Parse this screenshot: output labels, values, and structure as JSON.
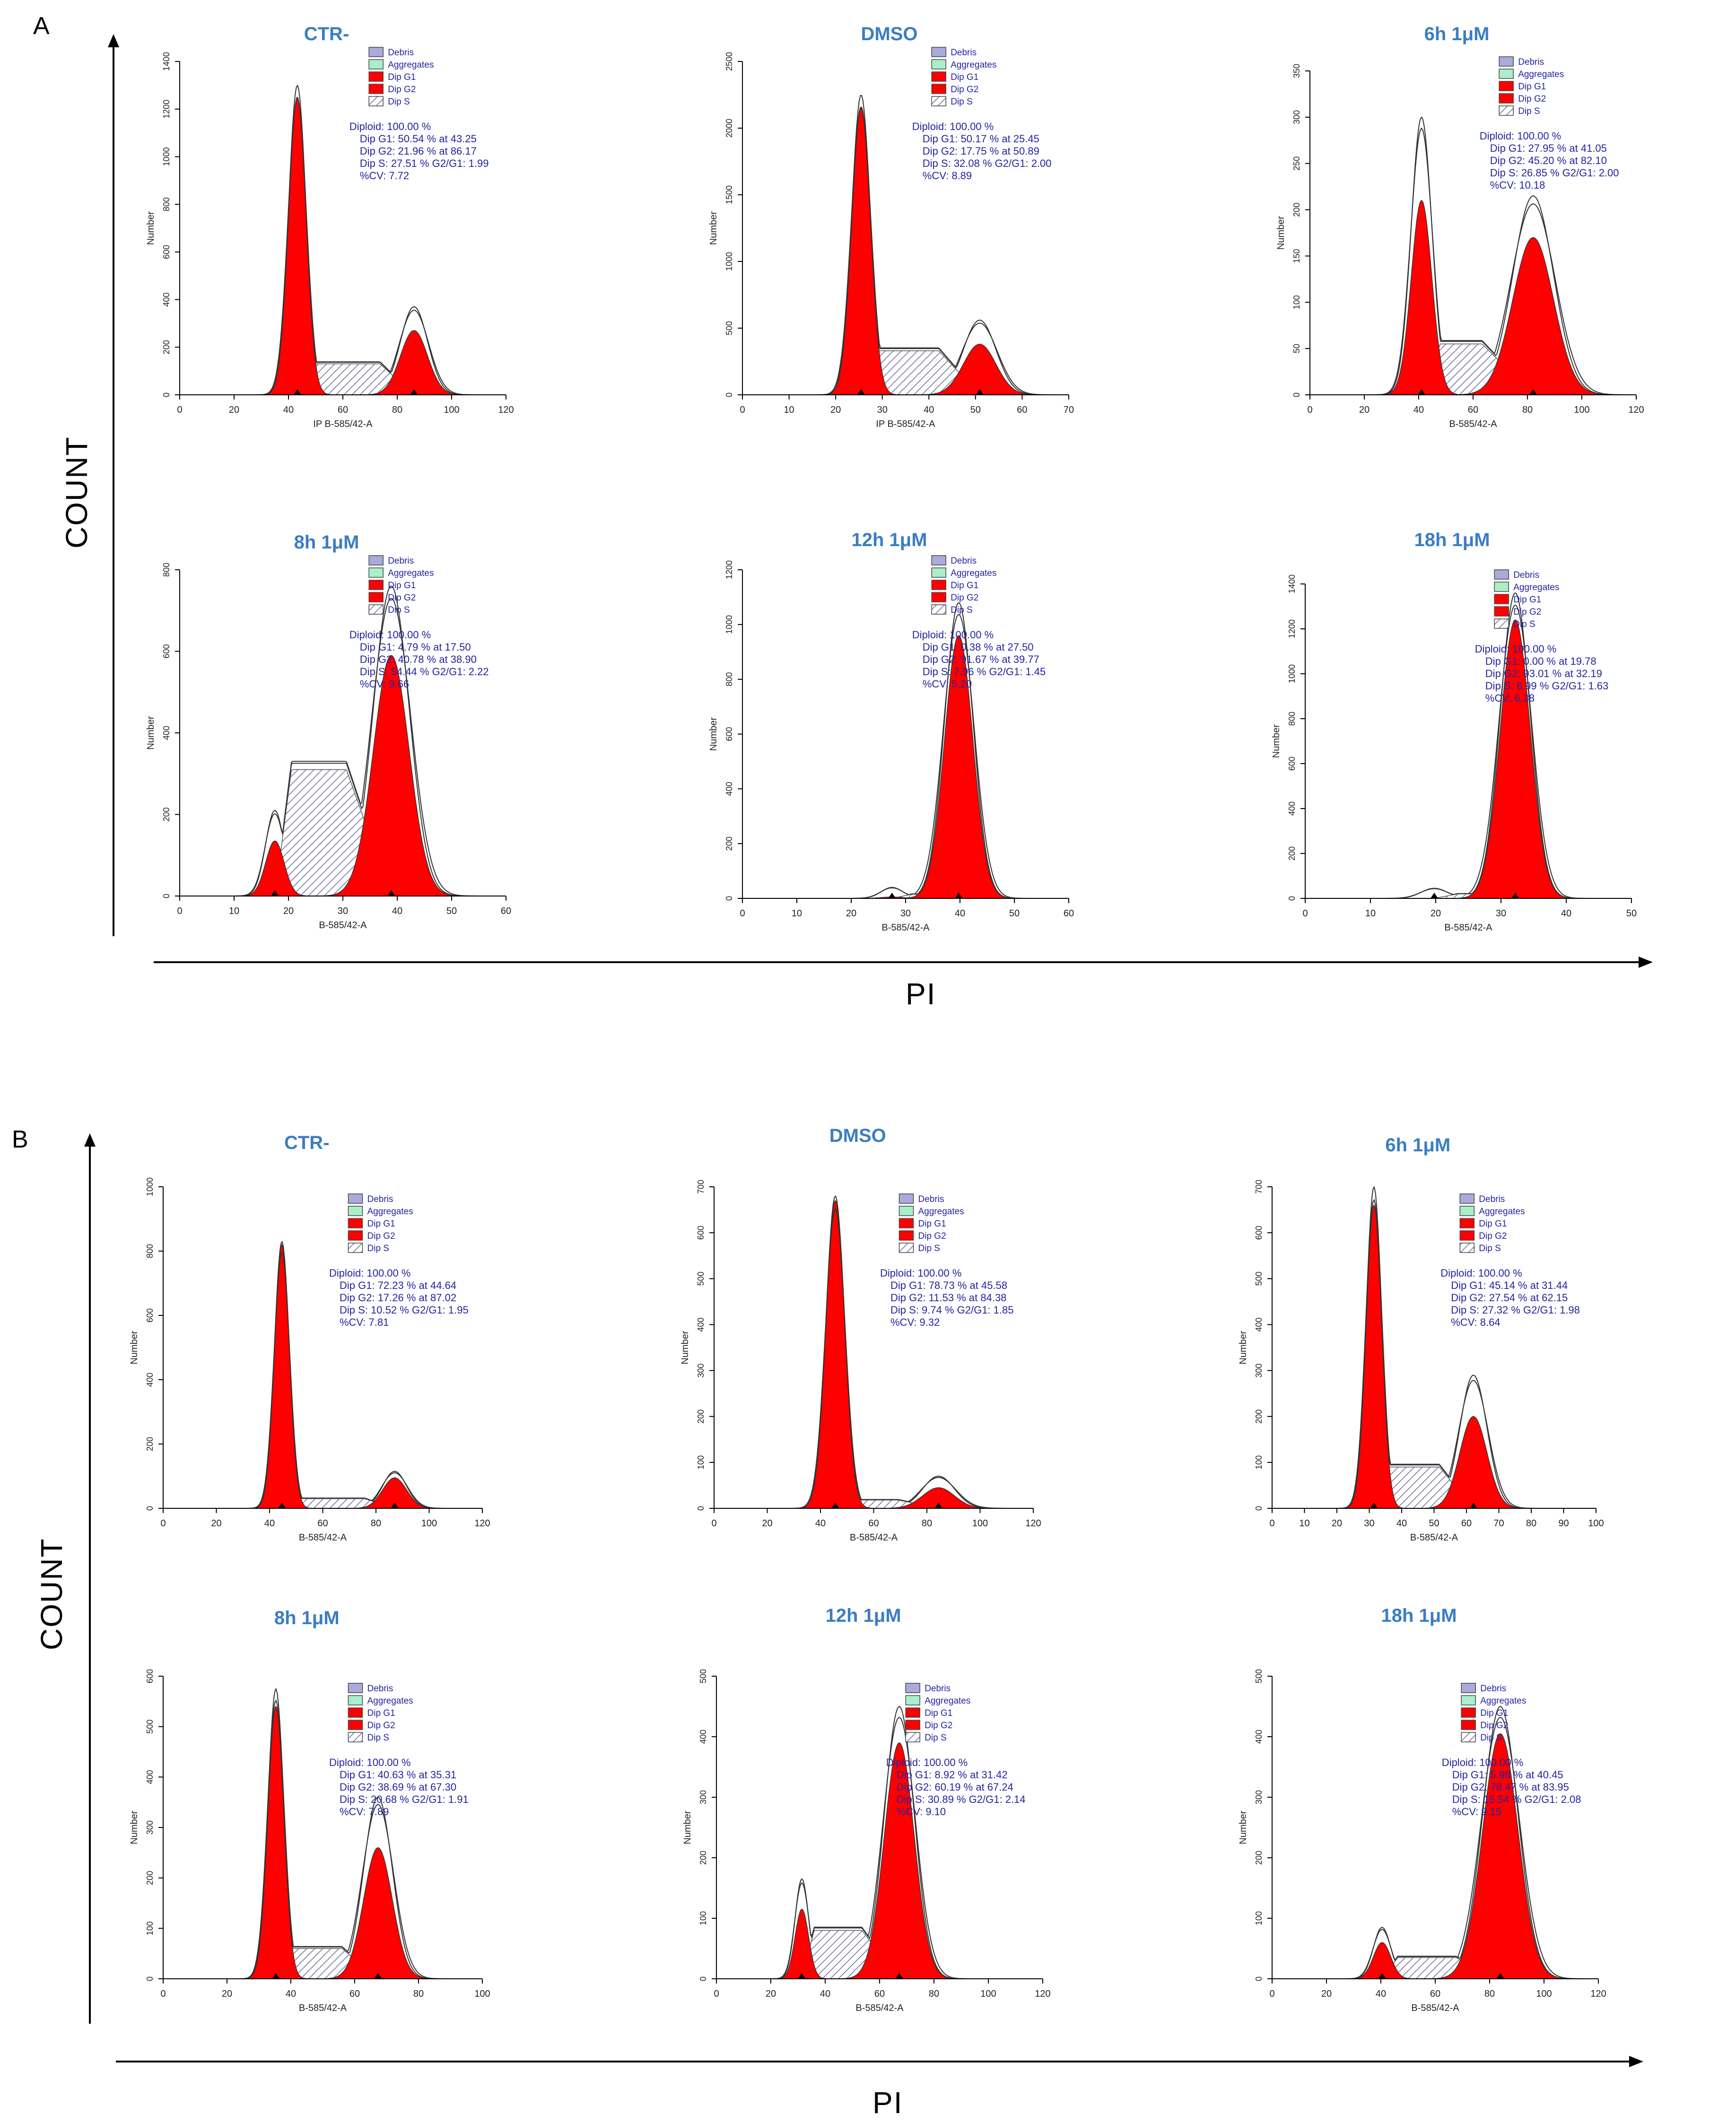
{
  "figure": {
    "panel_labels": [
      "A",
      "B"
    ],
    "y_axis_label": "COUNT",
    "x_axis_label": "PI"
  },
  "legend_labels": [
    "Debris",
    "Aggregates",
    "Dip G1",
    "Dip G2",
    "Dip S"
  ],
  "colors": {
    "title_blue": "#3b7dc4",
    "stats_blue": "#2323a0",
    "g1_g2_fill": "#ff0000",
    "debris": "#aaaadd",
    "aggregates": "#aaeecc",
    "s_hatch": "#6b6b9f"
  },
  "chart_data": [
    {
      "type": "area",
      "panel": "A",
      "title": "CTR-",
      "xlabel": "IP B-585/42-A",
      "ylabel": "Number",
      "xlim": [
        0,
        120
      ],
      "xticks": [
        0,
        20,
        40,
        60,
        80,
        100,
        120
      ],
      "ylim": [
        0,
        1400
      ],
      "yticks": [
        0,
        200,
        400,
        600,
        800,
        1000,
        1200,
        1400
      ],
      "series": [
        {
          "name": "Dip G1",
          "mean": 43.25,
          "peak": 1250,
          "width": 3.2
        },
        {
          "name": "Dip G2",
          "mean": 86.17,
          "peak": 270,
          "width": 5
        },
        {
          "name": "Dip S",
          "level": 130
        }
      ],
      "overall_peak_g1": 1300,
      "overall_peak_g2": 370,
      "stats": [
        "Diploid: 100.00 %",
        "Dip G1: 50.54 % at 43.25",
        "Dip G2: 21.96 % at 86.17",
        "Dip S: 27.51 %   G2/G1: 1.99",
        "%CV: 7.72"
      ]
    },
    {
      "type": "area",
      "panel": "A",
      "title": "DMSO",
      "xlabel": "IP B-585/42-A",
      "ylabel": "Number",
      "xlim": [
        0,
        70
      ],
      "xticks": [
        0,
        10,
        20,
        30,
        40,
        50,
        60,
        70
      ],
      "ylim": [
        0,
        2500
      ],
      "yticks": [
        0,
        500,
        1000,
        1500,
        2000,
        2500
      ],
      "series": [
        {
          "name": "Dip G1",
          "mean": 25.45,
          "peak": 2150,
          "width": 2.0
        },
        {
          "name": "Dip G2",
          "mean": 50.89,
          "peak": 380,
          "width": 3.5
        },
        {
          "name": "Dip S",
          "level": 330
        }
      ],
      "overall_peak_g1": 2250,
      "overall_peak_g2": 560,
      "stats": [
        "Diploid: 100.00 %",
        "Dip G1: 50.17 % at 25.45",
        "Dip G2: 17.75 % at 50.89",
        "Dip S: 32.08 %   G2/G1: 2.00",
        "%CV: 8.89"
      ]
    },
    {
      "type": "area",
      "panel": "A",
      "title": "6h 1μM",
      "xlabel": "B-585/42-A",
      "ylabel": "Number",
      "xlim": [
        0,
        120
      ],
      "xticks": [
        0,
        20,
        40,
        60,
        80,
        100,
        120
      ],
      "ylim": [
        0,
        350
      ],
      "yticks": [
        0,
        50,
        100,
        150,
        200,
        250,
        300,
        350
      ],
      "series": [
        {
          "name": "Dip G1",
          "mean": 41.05,
          "peak": 210,
          "width": 3.8
        },
        {
          "name": "Dip G2",
          "mean": 82.1,
          "peak": 170,
          "width": 7.5
        },
        {
          "name": "Dip S",
          "level": 55
        }
      ],
      "overall_peak_g1": 300,
      "overall_peak_g2": 215,
      "stats": [
        "Diploid: 100.00 %",
        "Dip G1: 27.95 % at 41.05",
        "Dip G2: 45.20 % at 82.10",
        "Dip S: 26.85 %   G2/G1: 2.00",
        "%CV: 10.18"
      ]
    },
    {
      "type": "area",
      "panel": "A",
      "title": "8h 1μM",
      "xlabel": "B-585/42-A",
      "ylabel": "Number",
      "xlim": [
        0,
        60
      ],
      "xticks": [
        0,
        10,
        20,
        30,
        40,
        50,
        60
      ],
      "ylim": [
        0,
        800
      ],
      "yticks": [
        0,
        200,
        400,
        600,
        800
      ],
      "series": [
        {
          "name": "Dip G1",
          "mean": 17.5,
          "peak": 135,
          "width": 1.7
        },
        {
          "name": "Dip G2",
          "mean": 38.9,
          "peak": 590,
          "width": 3.3
        },
        {
          "name": "Dip S",
          "level": 310
        }
      ],
      "overall_peak_g1": 210,
      "overall_peak_g2": 760,
      "stats": [
        "Diploid: 100.00 %",
        "Dip G1: 4.79 % at 17.50",
        "Dip G2: 40.78 % at 38.90",
        "Dip S: 54.44 %   G2/G1: 2.22",
        "%CV: 9.66"
      ]
    },
    {
      "type": "area",
      "panel": "A",
      "title": "12h 1μM",
      "xlabel": "B-585/42-A",
      "ylabel": "Number",
      "xlim": [
        0,
        60
      ],
      "xticks": [
        0,
        10,
        20,
        30,
        40,
        50,
        60
      ],
      "ylim": [
        0,
        1200
      ],
      "yticks": [
        0,
        200,
        400,
        600,
        800,
        1000,
        1200
      ],
      "series": [
        {
          "name": "Dip G1",
          "mean": 27.5,
          "peak": 5,
          "width": 2
        },
        {
          "name": "Dip G2",
          "mean": 39.77,
          "peak": 960,
          "width": 2.6
        },
        {
          "name": "Dip S",
          "level": 15
        }
      ],
      "overall_peak_g1": 40,
      "overall_peak_g2": 1080,
      "stats": [
        "Diploid: 100.00 %",
        "Dip G1: 0.38 % at 27.50",
        "Dip G2: 91.67 % at 39.77",
        "Dip S: 7.96 %   G2/G1: 1.45",
        "%CV: 5.20"
      ]
    },
    {
      "type": "area",
      "panel": "A",
      "title": "18h 1μM",
      "xlabel": "B-585/42-A",
      "ylabel": "Number",
      "xlim": [
        0,
        50
      ],
      "xticks": [
        0,
        10,
        20,
        30,
        40,
        50
      ],
      "ylim": [
        0,
        1400
      ],
      "yticks": [
        0,
        200,
        400,
        600,
        800,
        1000,
        1200,
        1400
      ],
      "series": [
        {
          "name": "Dip G1",
          "mean": 19.78,
          "peak": 0,
          "width": 2
        },
        {
          "name": "Dip G2",
          "mean": 32.19,
          "peak": 1240,
          "width": 2.3
        },
        {
          "name": "Dip S",
          "level": 20
        }
      ],
      "overall_peak_g1": 45,
      "overall_peak_g2": 1360,
      "stats": [
        "Diploid: 100.00 %",
        "Dip G1: 0.00 % at 19.78",
        "Dip G2: 93.01 % at 32.19",
        "Dip S: 6.99 %   G2/G1: 1.63",
        "%CV: 6.38"
      ]
    },
    {
      "type": "area",
      "panel": "B",
      "title": "CTR-",
      "xlabel": "B-585/42-A",
      "ylabel": "Number",
      "xlim": [
        0,
        120
      ],
      "xticks": [
        0,
        20,
        40,
        60,
        80,
        100,
        120
      ],
      "ylim": [
        0,
        1000
      ],
      "yticks": [
        0,
        200,
        400,
        600,
        800,
        1000
      ],
      "series": [
        {
          "name": "Dip G1",
          "mean": 44.64,
          "peak": 820,
          "width": 2.8
        },
        {
          "name": "Dip G2",
          "mean": 87.02,
          "peak": 95,
          "width": 4.5
        },
        {
          "name": "Dip S",
          "level": 30
        }
      ],
      "overall_peak_g1": 830,
      "overall_peak_g2": 115,
      "stats": [
        "Diploid: 100.00 %",
        "Dip G1: 72.23 % at 44.64",
        "Dip G2: 17.26 % at 87.02",
        "Dip S: 10.52 %   G2/G1: 1.95",
        "%CV: 7.81"
      ]
    },
    {
      "type": "area",
      "panel": "B",
      "title": "DMSO",
      "xlabel": "B-585/42-A",
      "ylabel": "Number",
      "xlim": [
        0,
        120
      ],
      "xticks": [
        0,
        20,
        40,
        60,
        80,
        100,
        120
      ],
      "ylim": [
        0,
        700
      ],
      "yticks": [
        0,
        100,
        200,
        300,
        400,
        500,
        600,
        700
      ],
      "series": [
        {
          "name": "Dip G1",
          "mean": 45.58,
          "peak": 670,
          "width": 3.5
        },
        {
          "name": "Dip G2",
          "mean": 84.38,
          "peak": 45,
          "width": 6
        },
        {
          "name": "Dip S",
          "level": 18
        }
      ],
      "overall_peak_g1": 680,
      "overall_peak_g2": 70,
      "stats": [
        "Diploid: 100.00 %",
        "Dip G1: 78.73 % at 45.58",
        "Dip G2: 11.53 % at 84.38",
        "Dip S: 9.74 %   G2/G1: 1.85",
        "%CV: 9.32"
      ]
    },
    {
      "type": "area",
      "panel": "B",
      "title": "6h 1μM",
      "xlabel": "B-585/42-A",
      "ylabel": "Number",
      "xlim": [
        0,
        100
      ],
      "xticks": [
        0,
        10,
        20,
        30,
        40,
        50,
        60,
        70,
        80,
        90,
        100
      ],
      "ylim": [
        0,
        700
      ],
      "yticks": [
        0,
        100,
        200,
        300,
        400,
        500,
        600,
        700
      ],
      "series": [
        {
          "name": "Dip G1",
          "mean": 31.44,
          "peak": 660,
          "width": 2.4
        },
        {
          "name": "Dip G2",
          "mean": 62.15,
          "peak": 200,
          "width": 4.2
        },
        {
          "name": "Dip S",
          "level": 90
        }
      ],
      "overall_peak_g1": 700,
      "overall_peak_g2": 290,
      "stats": [
        "Diploid: 100.00 %",
        "Dip G1: 45.14 % at 31.44",
        "Dip G2: 27.54 % at 62.15",
        "Dip S: 27.32 %   G2/G1: 1.98",
        "%CV: 8.64"
      ]
    },
    {
      "type": "area",
      "panel": "B",
      "title": "8h 1μM",
      "xlabel": "B-585/42-A",
      "ylabel": "Number",
      "xlim": [
        0,
        100
      ],
      "xticks": [
        0,
        20,
        40,
        60,
        80,
        100
      ],
      "ylim": [
        0,
        600
      ],
      "yticks": [
        0,
        100,
        200,
        300,
        400,
        500,
        600
      ],
      "series": [
        {
          "name": "Dip G1",
          "mean": 35.31,
          "peak": 540,
          "width": 2.5
        },
        {
          "name": "Dip G2",
          "mean": 67.3,
          "peak": 260,
          "width": 4.5
        },
        {
          "name": "Dip S",
          "level": 60
        }
      ],
      "overall_peak_g1": 575,
      "overall_peak_g2": 360,
      "stats": [
        "Diploid: 100.00 %",
        "Dip G1: 40.63 % at 35.31",
        "Dip G2: 38.69 % at 67.30",
        "Dip S: 20.68 %   G2/G1: 1.91",
        "%CV: 7.89"
      ]
    },
    {
      "type": "area",
      "panel": "B",
      "title": "12h 1μM",
      "xlabel": "B-585/42-A",
      "ylabel": "Number",
      "xlim": [
        0,
        120
      ],
      "xticks": [
        0,
        20,
        40,
        60,
        80,
        100,
        120
      ],
      "ylim": [
        0,
        500
      ],
      "yticks": [
        0,
        100,
        200,
        300,
        400,
        500
      ],
      "series": [
        {
          "name": "Dip G1",
          "mean": 31.42,
          "peak": 115,
          "width": 2.5
        },
        {
          "name": "Dip G2",
          "mean": 67.24,
          "peak": 390,
          "width": 5.5
        },
        {
          "name": "Dip S",
          "level": 80
        }
      ],
      "overall_peak_g1": 165,
      "overall_peak_g2": 450,
      "stats": [
        "Diploid: 100.00 %",
        "Dip G1: 8.92 % at 31.42",
        "Dip G2: 60.19 % at 67.24",
        "Dip S: 30.89 %   G2/G1: 2.14",
        "%CV: 9.10"
      ]
    },
    {
      "type": "area",
      "panel": "B",
      "title": "18h 1μM",
      "xlabel": "B-585/42-A",
      "ylabel": "Number",
      "xlim": [
        0,
        120
      ],
      "xticks": [
        0,
        20,
        40,
        60,
        80,
        100,
        120
      ],
      "ylim": [
        0,
        500
      ],
      "yticks": [
        0,
        100,
        200,
        300,
        400,
        500
      ],
      "series": [
        {
          "name": "Dip G1",
          "mean": 40.45,
          "peak": 60,
          "width": 3.2
        },
        {
          "name": "Dip G2",
          "mean": 83.95,
          "peak": 405,
          "width": 6.5
        },
        {
          "name": "Dip S",
          "level": 35
        }
      ],
      "overall_peak_g1": 85,
      "overall_peak_g2": 450,
      "stats": [
        "Diploid: 100.00 %",
        "Dip G1: 5.98 % at 40.45",
        "Dip G2: 78.47 % at 83.95",
        "Dip S: 15.54 %   G2/G1: 2.08",
        "%CV: 9.15"
      ]
    }
  ]
}
